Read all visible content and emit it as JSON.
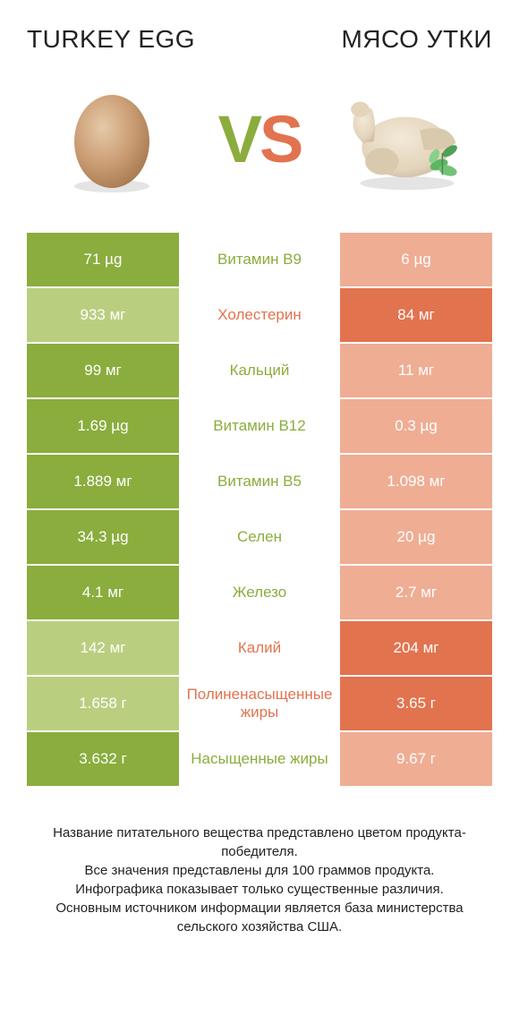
{
  "type": "infographic",
  "titles": {
    "left": "TURKEY EGG",
    "right": "МЯСО УТКИ"
  },
  "vs": {
    "v": "V",
    "s": "S"
  },
  "colors": {
    "green": "#8aad3d",
    "green_light": "#b9cf7f",
    "red": "#e2734f",
    "red_light": "#efad94",
    "white": "#ffffff",
    "text": "#222222"
  },
  "rows": [
    {
      "left": "71 µg",
      "mid": "Витамин B9",
      "right": "6 µg",
      "winner": "left"
    },
    {
      "left": "933 мг",
      "mid": "Холестерин",
      "right": "84 мг",
      "winner": "right"
    },
    {
      "left": "99 мг",
      "mid": "Кальций",
      "right": "11 мг",
      "winner": "left"
    },
    {
      "left": "1.69 µg",
      "mid": "Витамин B12",
      "right": "0.3 µg",
      "winner": "left"
    },
    {
      "left": "1.889 мг",
      "mid": "Витамин B5",
      "right": "1.098 мг",
      "winner": "left"
    },
    {
      "left": "34.3 µg",
      "mid": "Селен",
      "right": "20 µg",
      "winner": "left"
    },
    {
      "left": "4.1 мг",
      "mid": "Железо",
      "right": "2.7 мг",
      "winner": "left"
    },
    {
      "left": "142 мг",
      "mid": "Калий",
      "right": "204 мг",
      "winner": "right"
    },
    {
      "left": "1.658 г",
      "mid": "Полиненасыщенные жиры",
      "right": "3.65 г",
      "winner": "right"
    },
    {
      "left": "3.632 г",
      "mid": "Насыщенные жиры",
      "right": "9.67 г",
      "winner": "left"
    }
  ],
  "footer": [
    "Название питательного вещества представлено цветом продукта-победителя.",
    "Все значения представлены для 100 граммов продукта.",
    "Инфографика показывает только существенные различия.",
    "Основным источником информации является база министерства сельского хозяйства США."
  ],
  "egg": {
    "fill": "#c99b72",
    "shadow": "#d9d9d9"
  },
  "duck": {
    "body": "#e8dcc8",
    "shadow": "#c7b89e",
    "mint": "#5fb563"
  }
}
